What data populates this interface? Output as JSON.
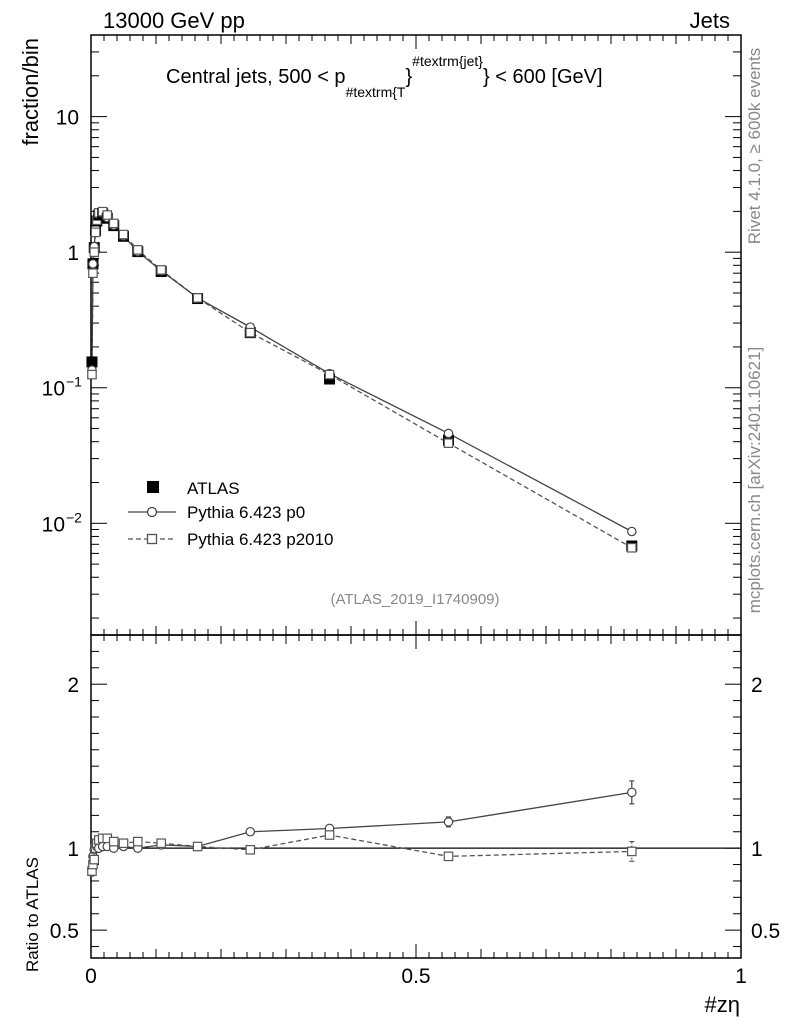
{
  "header": {
    "left": "13000 GeV pp",
    "right": "Jets"
  },
  "title_prefix": "Central jets, 500 < p",
  "title_sub": "#textrm{T",
  "title_brace": "}",
  "title_sup": "#textrm{jet}",
  "title_suffix": "} < 600 [GeV]",
  "side_text": {
    "rivet": "Rivet 4.1.0, ≥ 600k events",
    "mcplots": "mcplots.cern.ch [arXiv:2401.10621]"
  },
  "analysis_id": "(ATLAS_2019_I1740909)",
  "legend": [
    {
      "label": "ATLAS",
      "marker": "filled-square"
    },
    {
      "label": "Pythia 6.423 p0",
      "marker": "open-circle"
    },
    {
      "label": "Pythia 6.423 p2010",
      "marker": "open-square"
    }
  ],
  "colors": {
    "data": "#000000",
    "p0": "#444444",
    "p2010": "#555555",
    "label_grey": "#888888"
  },
  "chart_data": [
    {
      "type": "line",
      "yscale": "log",
      "ylabel": "fraction/bin",
      "xlabel": "",
      "xlim": [
        0,
        1
      ],
      "ylim": [
        0.0015,
        40
      ],
      "yticks": [
        0.01,
        0.1,
        1,
        10
      ],
      "ytick_labels": [
        {
          "base": "10",
          "exp": "−2"
        },
        {
          "base": "10",
          "exp": "−1"
        },
        {
          "base": "1",
          "exp": ""
        },
        {
          "base": "10",
          "exp": ""
        }
      ],
      "x": [
        0.0015,
        0.003,
        0.005,
        0.007,
        0.009,
        0.012,
        0.018,
        0.025,
        0.035,
        0.05,
        0.072,
        0.108,
        0.164,
        0.245,
        0.367,
        0.55,
        0.832
      ],
      "series": [
        {
          "name": "ATLAS",
          "values": [
            0.155,
            0.82,
            1.08,
            1.45,
            1.7,
            1.88,
            1.92,
            1.78,
            1.57,
            1.31,
            1.01,
            0.72,
            0.455,
            0.255,
            0.116,
            0.041,
            0.0068
          ]
        },
        {
          "name": "Pythia 6.423 p0",
          "values": [
            0.135,
            0.82,
            1.1,
            1.5,
            1.75,
            1.9,
            1.95,
            1.8,
            1.58,
            1.32,
            1.01,
            0.73,
            0.46,
            0.28,
            0.127,
            0.046,
            0.0087
          ]
        },
        {
          "name": "Pythia 6.423 p2010",
          "values": [
            0.125,
            0.7,
            1.0,
            1.4,
            1.72,
            1.95,
            1.99,
            1.88,
            1.63,
            1.35,
            1.04,
            0.74,
            0.46,
            0.255,
            0.125,
            0.039,
            0.0066
          ]
        }
      ]
    },
    {
      "type": "line",
      "ylabel": "Ratio to ATLAS",
      "xlabel": "#zη",
      "xlim": [
        0,
        1
      ],
      "ylim": [
        0.33,
        2.3
      ],
      "yticks": [
        0.5,
        1,
        2
      ],
      "ytick_labels": [
        "0.5",
        "1",
        "2"
      ],
      "xticks": [
        0,
        0.5,
        1
      ],
      "xtick_labels": [
        "0",
        "0.5",
        "1"
      ],
      "x": [
        0.0015,
        0.003,
        0.005,
        0.007,
        0.009,
        0.012,
        0.018,
        0.025,
        0.035,
        0.05,
        0.072,
        0.108,
        0.164,
        0.245,
        0.367,
        0.55,
        0.832
      ],
      "reference": 1,
      "series": [
        {
          "name": "Pythia 6.423 p0",
          "values": [
            0.87,
            0.95,
            0.99,
            1.0,
            1.01,
            1.0,
            1.01,
            1.01,
            1.0,
            1.01,
            1.0,
            1.02,
            1.01,
            1.1,
            1.12,
            1.16,
            1.34
          ],
          "errors": [
            0.03,
            0.02,
            0.01,
            0.01,
            0.01,
            0.01,
            0.01,
            0.01,
            0.01,
            0.01,
            0.01,
            0.01,
            0.01,
            0.01,
            0.01,
            0.03,
            0.07
          ]
        },
        {
          "name": "Pythia 6.423 p2010",
          "values": [
            0.86,
            0.9,
            0.93,
            1.0,
            1.03,
            1.05,
            1.06,
            1.06,
            1.04,
            1.03,
            1.04,
            1.03,
            1.01,
            0.99,
            1.08,
            0.95,
            0.98
          ],
          "errors": [
            0.03,
            0.02,
            0.01,
            0.01,
            0.01,
            0.01,
            0.01,
            0.01,
            0.01,
            0.01,
            0.01,
            0.01,
            0.01,
            0.01,
            0.01,
            0.02,
            0.06
          ]
        }
      ]
    }
  ]
}
